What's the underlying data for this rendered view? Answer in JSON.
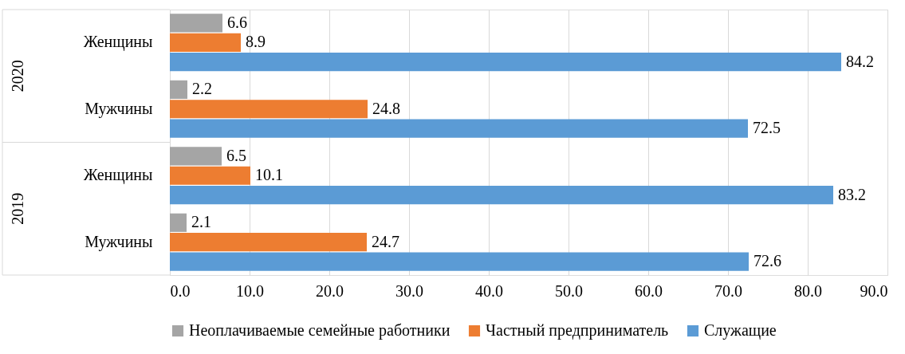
{
  "chart_data": {
    "type": "bar",
    "orientation": "horizontal",
    "categories": [
      "Женщины",
      "Мужчины",
      "Женщины",
      "Мужчины"
    ],
    "series": [
      {
        "name": "Неоплачиваемые семейные работники",
        "color": "#a5a5a5",
        "values": [
          6.6,
          2.2,
          6.5,
          2.1
        ]
      },
      {
        "name": "Частный предприниматель",
        "color": "#ed7d31",
        "values": [
          8.9,
          24.8,
          10.1,
          24.7
        ]
      },
      {
        "name": "Служащие",
        "color": "#5b9bd5",
        "values": [
          84.2,
          72.5,
          83.2,
          72.6
        ]
      }
    ],
    "annotations": [
      "2020",
      "2019"
    ],
    "xlim": [
      0,
      90
    ],
    "xticks": [
      {
        "value": 0,
        "label": "0.0"
      },
      {
        "value": 10,
        "label": "10.0"
      },
      {
        "value": 20,
        "label": "20.0"
      },
      {
        "value": 30,
        "label": "30.0"
      },
      {
        "value": 40,
        "label": "40.0"
      },
      {
        "value": 50,
        "label": "50.0"
      },
      {
        "value": 60,
        "label": "60.0"
      },
      {
        "value": 70,
        "label": "70.0"
      },
      {
        "value": 80,
        "label": "80.0"
      },
      {
        "value": 90,
        "label": "90.0"
      }
    ],
    "grid": "x",
    "legend": "bottom",
    "data_labels": true
  }
}
